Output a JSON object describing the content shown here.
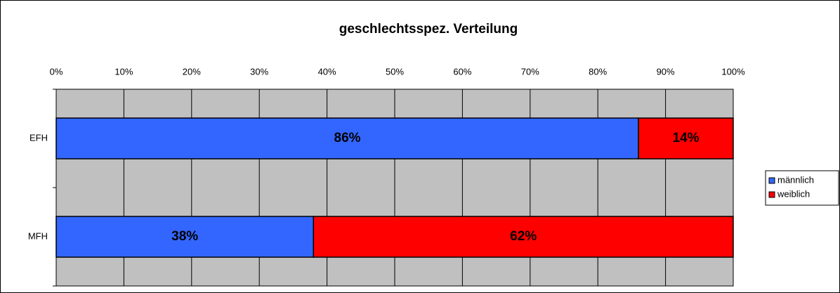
{
  "chart_data": {
    "type": "stacked_bar_horizontal",
    "title": "geschlechtsspez. Verteilung",
    "categories": [
      "EFH",
      "MFH"
    ],
    "series": [
      {
        "name": "männlich",
        "color": "#3366ff",
        "values": [
          86,
          38
        ],
        "value_labels": [
          "86%",
          "38%"
        ]
      },
      {
        "name": "weiblich",
        "color": "#ff0000",
        "values": [
          14,
          62
        ],
        "value_labels": [
          "14%",
          "62%"
        ]
      }
    ],
    "xlim": [
      0,
      100
    ],
    "xticks": [
      {
        "value": 0,
        "label": "0%"
      },
      {
        "value": 10,
        "label": "10%"
      },
      {
        "value": 20,
        "label": "20%"
      },
      {
        "value": 30,
        "label": "30%"
      },
      {
        "value": 40,
        "label": "40%"
      },
      {
        "value": 50,
        "label": "50%"
      },
      {
        "value": 60,
        "label": "60%"
      },
      {
        "value": 70,
        "label": "70%"
      },
      {
        "value": 80,
        "label": "80%"
      },
      {
        "value": 90,
        "label": "90%"
      },
      {
        "value": 100,
        "label": "100%"
      }
    ],
    "grid": true,
    "legend": "right"
  }
}
